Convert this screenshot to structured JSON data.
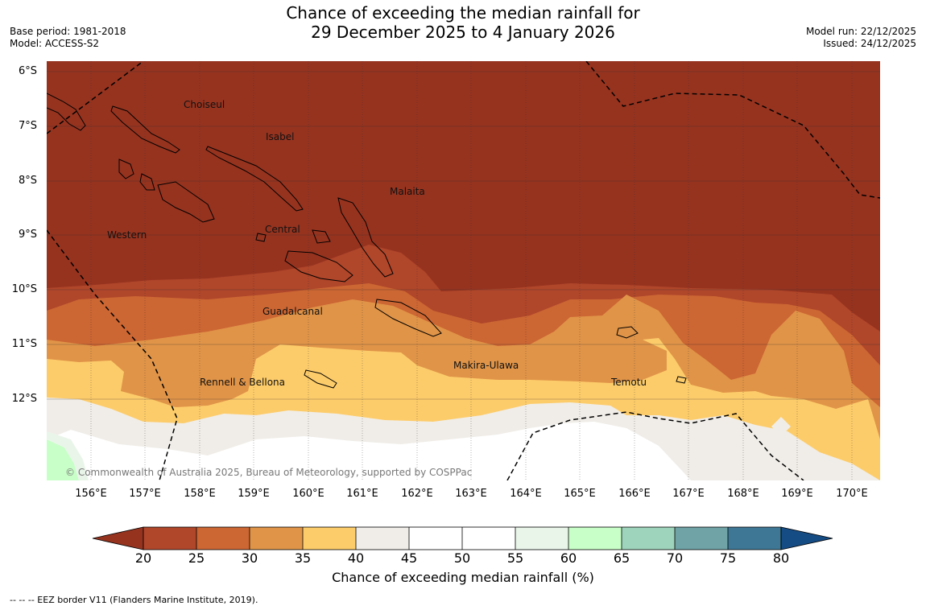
{
  "title": {
    "line1": "Chance of exceeding the median rainfall for",
    "line2": "29 December 2025 to 4 January 2026"
  },
  "meta": {
    "base_period": "Base period: 1981-2018",
    "model": "Model: ACCESS-S2",
    "model_run": "Model run: 22/12/2025",
    "issued": "Issued: 24/12/2025"
  },
  "map": {
    "lat_labels": [
      "6°S",
      "7°S",
      "8°S",
      "9°S",
      "10°S",
      "11°S",
      "12°S"
    ],
    "lon_labels": [
      "156°E",
      "157°E",
      "158°E",
      "159°E",
      "160°E",
      "161°E",
      "162°E",
      "163°E",
      "164°E",
      "165°E",
      "166°E",
      "167°E",
      "168°E",
      "169°E",
      "170°E"
    ],
    "places": {
      "choiseul": "Choiseul",
      "isabel": "Isabel",
      "malaita": "Malaita",
      "western": "Western",
      "central": "Central",
      "guadalcanal": "Guadalcanal",
      "makira": "Makira-Ulawa",
      "rennell": "Rennell & Bellona",
      "temotu": "Temotu"
    },
    "copyright": "© Commonwealth of Australia 2025, Bureau of Meteorology, supported by COSPPac"
  },
  "colorbar": {
    "label": "Chance of exceeding median rainfall (%)",
    "ticks": [
      "20",
      "25",
      "30",
      "35",
      "40",
      "45",
      "50",
      "55",
      "60",
      "65",
      "70",
      "75",
      "80"
    ],
    "colors": [
      "#96331f",
      "#b0462a",
      "#cc6633",
      "#e09448",
      "#fdcc6a",
      "#f0ede8",
      "#ffffff",
      "#ffffff",
      "#eaf5ea",
      "#c8ffc8",
      "#9ed4bc",
      "#6fa3a6",
      "#3e7796",
      "#154c84"
    ]
  },
  "footer": "--  --  -- EEZ border V11 (Flanders Marine Institute, 2019)."
}
